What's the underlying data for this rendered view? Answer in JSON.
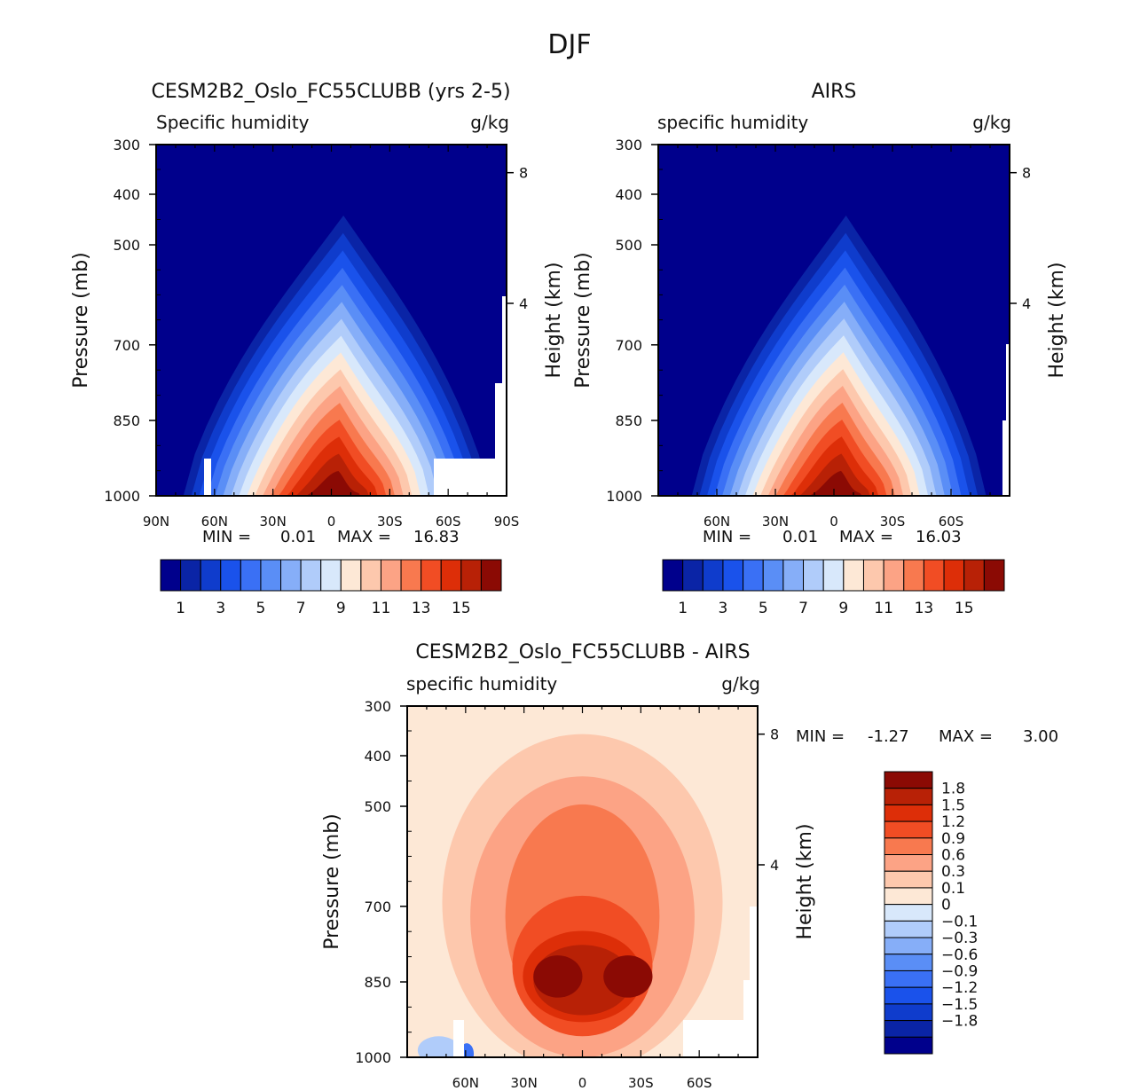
{
  "figure_title": "DJF",
  "colors": {
    "abs_levels": [
      "#00008c",
      "#0a24a6",
      "#0f3ccc",
      "#1a52eb",
      "#3a70f5",
      "#5a8ef6",
      "#86aef8",
      "#b0ccfa",
      "#d8e8fb",
      "#fde8d6",
      "#fdc8ad",
      "#fca385",
      "#f8794f",
      "#f14d24",
      "#dd2e08",
      "#b82106",
      "#8b0a04"
    ],
    "diff_levels": [
      "#8b0a04",
      "#b82106",
      "#dd2e08",
      "#f14d24",
      "#f8794f",
      "#fca385",
      "#fdc8ad",
      "#fde8d6",
      "#d8e8fb",
      "#b0ccfa",
      "#86aef8",
      "#5a8ef6",
      "#3a70f5",
      "#1a52eb",
      "#0f3ccc",
      "#0a24a6",
      "#00008c"
    ]
  },
  "chart_data": [
    {
      "type": "contour",
      "title": "CESM2B2_Oslo_FC55CLUBB (yrs 2-5)",
      "left_label": "Specific humidity",
      "right_label": "g/kg",
      "ylabel": "Pressure (mb)",
      "y2label": "Height (km)",
      "x_ticks": [
        "90N",
        "60N",
        "30N",
        "0",
        "30S",
        "60S",
        "90S"
      ],
      "x_range": [
        90,
        -90
      ],
      "y_ticks": [
        "300",
        "400",
        "500",
        "700",
        "850",
        "1000"
      ],
      "y_range_mb": [
        300,
        1000
      ],
      "height_ticks": [
        "8",
        "4"
      ],
      "min_label": "MIN =",
      "min_value": "0.01",
      "max_label": "MAX =",
      "max_value": "16.83",
      "min": 0.01,
      "max": 16.83,
      "levels": [
        1,
        2,
        3,
        4,
        5,
        6,
        7,
        8,
        9,
        10,
        11,
        12,
        13,
        14,
        15,
        16
      ],
      "colorbar_labels": [
        "1",
        "3",
        "5",
        "7",
        "9",
        "11",
        "13",
        "15"
      ],
      "peak_lat": 0,
      "peak_pressure_mb": 1000
    },
    {
      "type": "contour",
      "title": "AIRS",
      "left_label": "specific humidity",
      "right_label": "g/kg",
      "ylabel": "Pressure (mb)",
      "y2label": "Height (km)",
      "x_ticks": [
        "60N",
        "30N",
        "0",
        "30S",
        "60S"
      ],
      "x_range": [
        90,
        -90
      ],
      "y_ticks": [
        "300",
        "400",
        "500",
        "700",
        "850",
        "1000"
      ],
      "y_range_mb": [
        300,
        1000
      ],
      "height_ticks": [
        "8",
        "4"
      ],
      "min_label": "MIN =",
      "min_value": "0.01",
      "max_label": "MAX =",
      "max_value": "16.03",
      "min": 0.01,
      "max": 16.03,
      "levels": [
        1,
        2,
        3,
        4,
        5,
        6,
        7,
        8,
        9,
        10,
        11,
        12,
        13,
        14,
        15,
        16
      ],
      "colorbar_labels": [
        "1",
        "3",
        "5",
        "7",
        "9",
        "11",
        "13",
        "15"
      ],
      "peak_lat": 0,
      "peak_pressure_mb": 1000
    },
    {
      "type": "contour",
      "title": "CESM2B2_Oslo_FC55CLUBB - AIRS",
      "left_label": "specific humidity",
      "right_label": "g/kg",
      "ylabel": "Pressure (mb)",
      "y2label": "Height (km)",
      "x_ticks": [
        "60N",
        "30N",
        "0",
        "30S",
        "60S"
      ],
      "x_range": [
        90,
        -90
      ],
      "y_ticks": [
        "300",
        "400",
        "500",
        "700",
        "850",
        "1000"
      ],
      "y_range_mb": [
        300,
        1000
      ],
      "height_ticks": [
        "8",
        "4"
      ],
      "min_label": "MIN =",
      "min_value": "-1.27",
      "max_label": "MAX =",
      "max_value": "3.00",
      "min": -1.27,
      "max": 3.0,
      "levels": [
        -1.8,
        -1.5,
        -1.2,
        -0.9,
        -0.6,
        -0.3,
        -0.1,
        0,
        0.1,
        0.3,
        0.6,
        0.9,
        1.2,
        1.5,
        1.8
      ],
      "colorbar_labels": [
        "1.8",
        "1.5",
        "1.2",
        "0.9",
        "0.6",
        "0.3",
        "0.1",
        "0",
        "-0.1",
        "-0.3",
        "-0.6",
        "-0.9",
        "-1.2",
        "-1.5",
        "-1.8"
      ]
    }
  ]
}
